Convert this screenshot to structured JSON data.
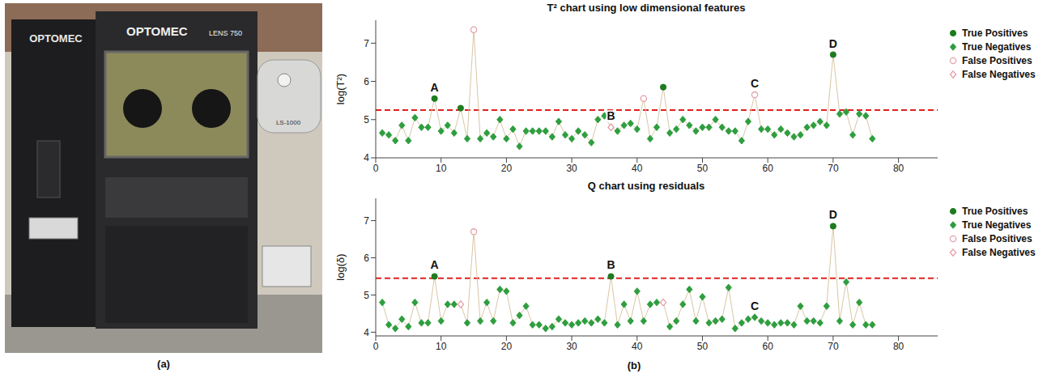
{
  "panels": {
    "a": "(a)",
    "b": "(b)"
  },
  "photo": {
    "texts": [
      "OPTOMEC",
      "OPTOMEC",
      "LENS 750",
      "LS-1000"
    ]
  },
  "chart_data": [
    {
      "type": "scatter",
      "title": "T² chart using low dimensional features",
      "y_label": "log(T²)",
      "color": "#d9c7a6",
      "line_style": "solid",
      "legend": "right",
      "xlim": [
        0,
        86
      ],
      "xticks": [
        0,
        10,
        20,
        30,
        40,
        50,
        60,
        70,
        80
      ],
      "ylim": [
        4,
        7.6
      ],
      "yticks": [
        4,
        5,
        6,
        7
      ],
      "threshold": {
        "value": 5.25,
        "color": "#e02020",
        "line_style": "dashed"
      },
      "x": [
        1,
        2,
        3,
        4,
        5,
        6,
        7,
        8,
        9,
        10,
        11,
        12,
        13,
        14,
        15,
        16,
        17,
        18,
        19,
        20,
        21,
        22,
        23,
        24,
        25,
        26,
        27,
        28,
        29,
        30,
        31,
        32,
        33,
        34,
        35,
        36,
        37,
        38,
        39,
        40,
        41,
        42,
        43,
        44,
        45,
        46,
        47,
        48,
        49,
        50,
        51,
        52,
        53,
        54,
        55,
        56,
        57,
        58,
        59,
        60,
        61,
        62,
        63,
        64,
        65,
        66,
        67,
        68,
        69,
        70,
        71,
        72,
        73,
        74,
        75,
        76
      ],
      "values": [
        4.65,
        4.6,
        4.45,
        4.85,
        4.45,
        5.05,
        4.8,
        4.8,
        5.55,
        4.7,
        4.85,
        4.65,
        5.3,
        4.5,
        7.35,
        4.5,
        4.65,
        4.55,
        5.0,
        4.5,
        4.75,
        4.3,
        4.7,
        4.7,
        4.7,
        4.7,
        4.55,
        4.95,
        4.6,
        4.5,
        4.7,
        4.6,
        4.4,
        5.0,
        5.1,
        4.8,
        4.7,
        4.85,
        4.9,
        4.75,
        5.55,
        4.5,
        4.8,
        5.85,
        4.65,
        4.75,
        5.0,
        4.85,
        4.7,
        4.8,
        4.8,
        5.0,
        4.8,
        4.7,
        4.7,
        4.45,
        4.95,
        5.65,
        4.75,
        4.75,
        4.6,
        4.75,
        4.65,
        4.55,
        4.6,
        4.8,
        4.85,
        4.95,
        4.85,
        6.7,
        5.15,
        5.2,
        4.6,
        5.15,
        5.1,
        4.5
      ],
      "series": [
        {
          "name": "True Positives",
          "color": "#1e7b1e",
          "marker": "circle",
          "x": [
            9,
            13,
            44,
            70
          ]
        },
        {
          "name": "True Negatives",
          "color": "#2e9e3e",
          "marker": "diamond",
          "x": [
            1,
            2,
            3,
            4,
            5,
            6,
            7,
            8,
            10,
            11,
            12,
            14,
            16,
            17,
            18,
            19,
            20,
            21,
            22,
            23,
            24,
            25,
            26,
            27,
            28,
            29,
            30,
            31,
            32,
            33,
            34,
            35,
            37,
            38,
            39,
            40,
            42,
            43,
            45,
            46,
            47,
            48,
            49,
            50,
            51,
            52,
            53,
            54,
            55,
            56,
            57,
            59,
            60,
            61,
            62,
            63,
            64,
            65,
            66,
            67,
            68,
            69,
            71,
            72,
            73,
            74,
            75,
            76
          ]
        },
        {
          "name": "False Positives",
          "color": "#e3a1aa",
          "marker": "circle_open",
          "x": [
            15,
            41,
            58
          ]
        },
        {
          "name": "False Negatives",
          "color": "#e3a1aa",
          "marker": "diamond_open",
          "x": [
            36
          ]
        }
      ],
      "annotations": [
        {
          "text": "A",
          "x": 9
        },
        {
          "text": "B",
          "x": 36
        },
        {
          "text": "C",
          "x": 58
        },
        {
          "text": "D",
          "x": 70
        }
      ]
    },
    {
      "type": "scatter",
      "title": "Q chart using residuals",
      "y_label": "log(δ)",
      "color": "#d9c7a6",
      "line_style": "solid",
      "legend": "right",
      "xlim": [
        0,
        86
      ],
      "xticks": [
        0,
        10,
        20,
        30,
        40,
        50,
        60,
        70,
        80
      ],
      "ylim": [
        3.9,
        7.6
      ],
      "yticks": [
        4,
        5,
        6,
        7
      ],
      "threshold": {
        "value": 5.45,
        "color": "#e02020",
        "line_style": "dashed"
      },
      "x": [
        1,
        2,
        3,
        4,
        5,
        6,
        7,
        8,
        9,
        10,
        11,
        12,
        13,
        14,
        15,
        16,
        17,
        18,
        19,
        20,
        21,
        22,
        23,
        24,
        25,
        26,
        27,
        28,
        29,
        30,
        31,
        32,
        33,
        34,
        35,
        36,
        37,
        38,
        39,
        40,
        41,
        42,
        43,
        44,
        45,
        46,
        47,
        48,
        49,
        50,
        51,
        52,
        53,
        54,
        55,
        56,
        57,
        58,
        59,
        60,
        61,
        62,
        63,
        64,
        65,
        66,
        67,
        68,
        69,
        70,
        71,
        72,
        73,
        74,
        75,
        76
      ],
      "values": [
        4.8,
        4.2,
        4.1,
        4.35,
        4.15,
        4.8,
        4.25,
        4.25,
        5.5,
        4.3,
        4.75,
        4.75,
        4.75,
        4.25,
        6.7,
        4.3,
        4.8,
        4.3,
        5.15,
        5.1,
        4.25,
        4.45,
        4.7,
        4.2,
        4.2,
        4.1,
        4.15,
        4.35,
        4.25,
        4.2,
        4.25,
        4.3,
        4.25,
        4.35,
        4.25,
        5.5,
        4.2,
        4.75,
        4.3,
        5.1,
        4.3,
        4.75,
        4.8,
        4.8,
        4.15,
        4.3,
        4.75,
        5.15,
        4.3,
        4.95,
        4.25,
        4.3,
        4.35,
        5.2,
        4.1,
        4.25,
        4.35,
        4.4,
        4.3,
        4.25,
        4.2,
        4.25,
        4.25,
        4.2,
        4.7,
        4.3,
        4.3,
        4.25,
        4.7,
        6.85,
        4.3,
        5.35,
        4.2,
        4.8,
        4.2,
        4.2
      ],
      "series": [
        {
          "name": "True Positives",
          "color": "#1e7b1e",
          "marker": "circle",
          "x": [
            9,
            36,
            70
          ]
        },
        {
          "name": "True Negatives",
          "color": "#2e9e3e",
          "marker": "diamond",
          "x": [
            1,
            2,
            3,
            4,
            5,
            6,
            7,
            8,
            10,
            11,
            12,
            14,
            16,
            17,
            18,
            19,
            20,
            21,
            22,
            23,
            24,
            25,
            26,
            27,
            28,
            29,
            30,
            31,
            32,
            33,
            34,
            35,
            37,
            38,
            39,
            40,
            41,
            42,
            43,
            45,
            46,
            47,
            48,
            49,
            50,
            51,
            52,
            53,
            54,
            55,
            56,
            57,
            58,
            59,
            60,
            61,
            62,
            63,
            64,
            65,
            66,
            67,
            68,
            69,
            71,
            72,
            73,
            74,
            75,
            76
          ]
        },
        {
          "name": "False Positives",
          "color": "#e3a1aa",
          "marker": "circle_open",
          "x": [
            15
          ]
        },
        {
          "name": "False Negatives",
          "color": "#e3a1aa",
          "marker": "diamond_open",
          "x": [
            13,
            44
          ]
        }
      ],
      "annotations": [
        {
          "text": "A",
          "x": 9
        },
        {
          "text": "B",
          "x": 36
        },
        {
          "text": "C",
          "x": 58
        },
        {
          "text": "D",
          "x": 70
        }
      ]
    }
  ]
}
